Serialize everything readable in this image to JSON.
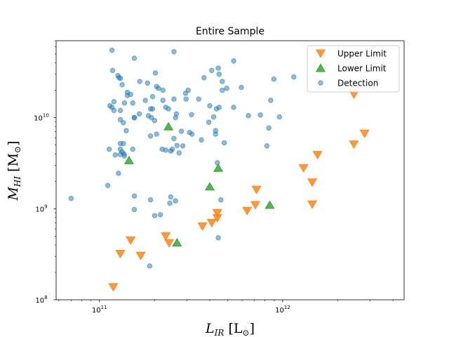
{
  "chart_data": {
    "type": "scatter",
    "title": "Entire Sample",
    "xlabel": "L_IR [L_⊙]",
    "ylabel": "M_HI [M_⊙]",
    "xscale": "log",
    "yscale": "log",
    "xlim": [
      58000000000.0,
      4600000000000.0
    ],
    "ylim": [
      100000000.0,
      70000000000.0
    ],
    "xticks": [
      {
        "value": 100000000000.0,
        "label": "10",
        "exp": "11"
      },
      {
        "value": 1000000000000.0,
        "label": "10",
        "exp": "12"
      }
    ],
    "yticks": [
      {
        "value": 100000000.0,
        "label": "10",
        "exp": "8"
      },
      {
        "value": 1000000000.0,
        "label": "10",
        "exp": "9"
      },
      {
        "value": 10000000000.0,
        "label": "10",
        "exp": "10"
      }
    ],
    "legend": {
      "location": "top-right"
    },
    "grid": false,
    "series": [
      {
        "name": "Upper Limit",
        "marker": "triangle-down",
        "color": "#ff7f0e",
        "points": [
          [
            2450000000000.0,
            18000000000.0
          ],
          [
            2800000000000.0,
            6700000000.0
          ],
          [
            2450000000000.0,
            5100000000.0
          ],
          [
            1550000000000.0,
            3900000000.0
          ],
          [
            1300000000000.0,
            2800000000.0
          ],
          [
            1450000000000.0,
            1950000000.0
          ],
          [
            1450000000000.0,
            1120000000.0
          ],
          [
            720000000000.0,
            1620000000.0
          ],
          [
            710000000000.0,
            1100000000.0
          ],
          [
            640000000000.0,
            950000000.0
          ],
          [
            440000000000.0,
            900000000.0
          ],
          [
            440000000000.0,
            790000000.0
          ],
          [
            410000000000.0,
            700000000.0
          ],
          [
            365000000000.0,
            640000000.0
          ],
          [
            230000000000.0,
            500000000.0
          ],
          [
            240000000000.0,
            420000000.0
          ],
          [
            148000000000.0,
            450000000.0
          ],
          [
            130000000000.0,
            320000000.0
          ],
          [
            168000000000.0,
            305000000.0
          ],
          [
            119000000000.0,
            138000000.0
          ]
        ]
      },
      {
        "name": "Lower Limit",
        "marker": "triangle-up",
        "color": "#2ca02c",
        "points": [
          [
            238000000000.0,
            8000000000.0
          ],
          [
            145000000000.0,
            3400000000.0
          ],
          [
            445000000000.0,
            2800000000.0
          ],
          [
            400000000000.0,
            1750000000.0
          ],
          [
            850000000000.0,
            1100000000.0
          ],
          [
            265000000000.0,
            425000000.0
          ]
        ]
      },
      {
        "name": "Detection",
        "marker": "circle",
        "color": "#1f77b4",
        "points": [
          [
            117000000000.0,
            55000000000.0
          ],
          [
            155000000000.0,
            45000000000.0
          ],
          [
            255000000000.0,
            53000000000.0
          ],
          [
            118000000000.0,
            33000000000.0
          ],
          [
            126000000000.0,
            29000000000.0
          ],
          [
            130000000000.0,
            27000000000.0
          ],
          [
            133000000000.0,
            23000000000.0
          ],
          [
            128000000000.0,
            27500000000.0
          ],
          [
            142000000000.0,
            19000000000.0
          ],
          [
            142000000000.0,
            17500000000.0
          ],
          [
            120000000000.0,
            15000000000.0
          ],
          [
            117000000000.0,
            13000000000.0
          ],
          [
            114000000000.0,
            13500000000.0
          ],
          [
            120000000000.0,
            12000000000.0
          ],
          [
            130000000000.0,
            12000000000.0
          ],
          [
            137000000000.0,
            14500000000.0
          ],
          [
            152000000000.0,
            14500000000.0
          ],
          [
            148000000000.0,
            18000000000.0
          ],
          [
            166000000000.0,
            25000000000.0
          ],
          [
            183000000000.0,
            24000000000.0
          ],
          [
            202000000000.0,
            31000000000.0
          ],
          [
            205000000000.0,
            22000000000.0
          ],
          [
            210000000000.0,
            21000000000.0
          ],
          [
            222000000000.0,
            20000000000.0
          ],
          [
            195000000000.0,
            17000000000.0
          ],
          [
            178000000000.0,
            15500000000.0
          ],
          [
            195000000000.0,
            12500000000.0
          ],
          [
            190000000000.0,
            12500000000.0
          ],
          [
            230000000000.0,
            13000000000.0
          ],
          [
            238000000000.0,
            12500000000.0
          ],
          [
            222000000000.0,
            15500000000.0
          ],
          [
            255000000000.0,
            16000000000.0
          ],
          [
            295000000000.0,
            18500000000.0
          ],
          [
            297000000000.0,
            16000000000.0
          ],
          [
            305000000000.0,
            20000000000.0
          ],
          [
            348000000000.0,
            16000000000.0
          ],
          [
            372000000000.0,
            27500000000.0
          ],
          [
            410000000000.0,
            33000000000.0
          ],
          [
            445000000000.0,
            35000000000.0
          ],
          [
            450000000000.0,
            30000000000.0
          ],
          [
            468000000000.0,
            25000000000.0
          ],
          [
            468000000000.0,
            20000000000.0
          ],
          [
            495000000000.0,
            21000000000.0
          ],
          [
            540000000000.0,
            42000000000.0
          ],
          [
            595000000000.0,
            21500000000.0
          ],
          [
            400000000000.0,
            13500000000.0
          ],
          [
            435000000000.0,
            12500000000.0
          ],
          [
            450000000000.0,
            13000000000.0
          ],
          [
            540000000000.0,
            13000000000.0
          ],
          [
            650000000000.0,
            10500000000.0
          ],
          [
            755000000000.0,
            10700000000.0
          ],
          [
            860000000000.0,
            15500000000.0
          ],
          [
            895000000000.0,
            26500000000.0
          ],
          [
            1150000000000.0,
            28000000000.0
          ],
          [
            960000000000.0,
            10200000000.0
          ],
          [
            840000000000.0,
            7700000000.0
          ],
          [
            820000000000.0,
            4900000000.0
          ],
          [
            430000000000.0,
            7200000000.0
          ],
          [
            430000000000.0,
            6600000000.0
          ],
          [
            480000000000.0,
            5300000000.0
          ],
          [
            395000000000.0,
            8900000000.0
          ],
          [
            420000000000.0,
            10200000000.0
          ],
          [
            360000000000.0,
            5700000000.0
          ],
          [
            310000000000.0,
            6900000000.0
          ],
          [
            320000000000.0,
            6600000000.0
          ],
          [
            318000000000.0,
            10800000000.0
          ],
          [
            280000000000.0,
            7100000000.0
          ],
          [
            260000000000.0,
            10000000000.0
          ],
          [
            263000000000.0,
            11000000000.0
          ],
          [
            255000000000.0,
            5900000000.0
          ],
          [
            250000000000.0,
            4500000000.0
          ],
          [
            265000000000.0,
            4950000000.0
          ],
          [
            245000000000.0,
            4300000000.0
          ],
          [
            230000000000.0,
            4400000000.0
          ],
          [
            220000000000.0,
            4500000000.0
          ],
          [
            272000000000.0,
            4100000000.0
          ],
          [
            285000000000.0,
            4900000000.0
          ],
          [
            205000000000.0,
            6600000000.0
          ],
          [
            200000000000.0,
            9300000000.0
          ],
          [
            192000000000.0,
            10000000000.0
          ],
          [
            185000000000.0,
            10500000000.0
          ],
          [
            165000000000.0,
            11000000000.0
          ],
          [
            155000000000.0,
            10000000000.0
          ],
          [
            155000000000.0,
            10000000000.0
          ],
          [
            130000000000.0,
            9500000000.0
          ],
          [
            135000000000.0,
            8800000000.0
          ],
          [
            140000000000.0,
            7200000000.0
          ],
          [
            130000000000.0,
            5200000000.0
          ],
          [
            135000000000.0,
            5200000000.0
          ],
          [
            130000000000.0,
            4500000000.0
          ],
          [
            133000000000.0,
            4200000000.0
          ],
          [
            130000000000.0,
            3950000000.0
          ],
          [
            136000000000.0,
            4000000000.0
          ],
          [
            122000000000.0,
            3900000000.0
          ],
          [
            137000000000.0,
            3800000000.0
          ],
          [
            152000000000.0,
            4500000000.0
          ],
          [
            113000000000.0,
            4500000000.0
          ],
          [
            127000000000.0,
            2450000000.0
          ],
          [
            111000000000.0,
            1800000000.0
          ],
          [
            70000000000.0,
            1300000000.0
          ],
          [
            155000000000.0,
            1380000000.0
          ],
          [
            155000000000.0,
            980000000.0
          ],
          [
            190000000000.0,
            1250000000.0
          ],
          [
            245000000000.0,
            1350000000.0
          ],
          [
            260000000000.0,
            1220000000.0
          ],
          [
            242000000000.0,
            1150000000.0
          ],
          [
            200000000000.0,
            840000000.0
          ],
          [
            215000000000.0,
            860000000.0
          ],
          [
            460000000000.0,
            1250000000.0
          ],
          [
            445000000000.0,
            480000000.0
          ],
          [
            188000000000.0,
            235000000.0
          ],
          [
            190000000000.0,
            6300000000.0
          ],
          [
            440000000000.0,
            3200000000.0
          ]
        ]
      }
    ]
  }
}
